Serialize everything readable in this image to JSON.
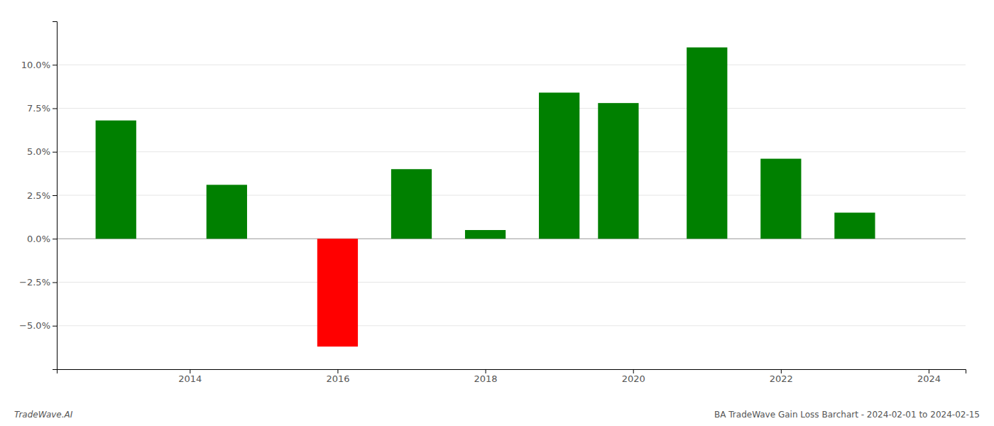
{
  "chart_data": {
    "type": "bar",
    "x": [
      2013,
      2014.5,
      2016,
      2017,
      2018,
      2019,
      2019.8,
      2021,
      2022,
      2023
    ],
    "values": [
      0.068,
      0.031,
      -0.062,
      0.04,
      0.005,
      0.084,
      0.078,
      0.11,
      0.046,
      0.015
    ],
    "colors": [
      "#008000",
      "#008000",
      "#ff0000",
      "#008000",
      "#008000",
      "#008000",
      "#008000",
      "#008000",
      "#008000",
      "#008000"
    ],
    "xlim": [
      2012.2,
      2024.5
    ],
    "xticks": [
      2014,
      2016,
      2018,
      2020,
      2022,
      2024
    ],
    "ylim": [
      -0.075,
      0.125
    ],
    "yticks": [
      {
        "value": -0.05,
        "label": "−5.0%"
      },
      {
        "value": -0.025,
        "label": "−2.5%"
      },
      {
        "value": 0.0,
        "label": "0.0%"
      },
      {
        "value": 0.025,
        "label": "2.5%"
      },
      {
        "value": 0.05,
        "label": "5.0%"
      },
      {
        "value": 0.075,
        "label": "7.5%"
      },
      {
        "value": 0.1,
        "label": "10.0%"
      }
    ],
    "grid": true,
    "annotations": [
      "TradeWave.AI",
      "BA TradeWave Gain Loss Barchart - 2024-02-01 to 2024-02-15"
    ]
  }
}
